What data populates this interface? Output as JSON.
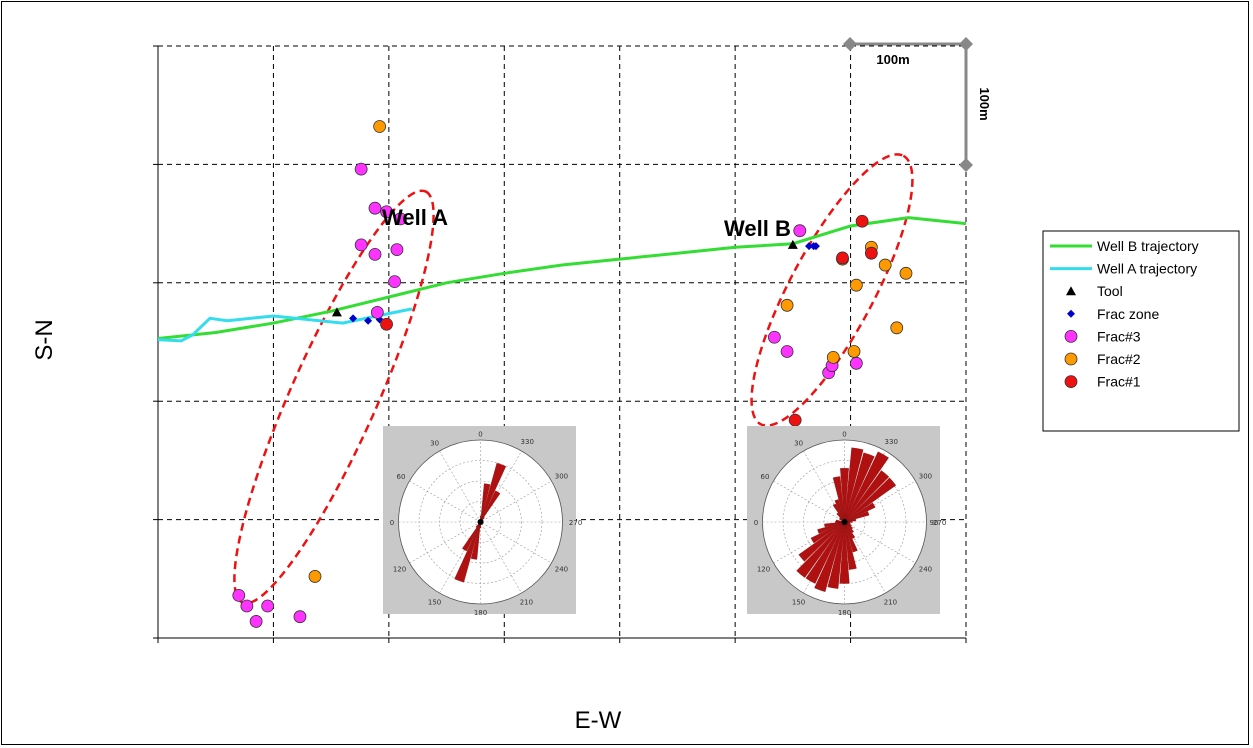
{
  "chart_data": {
    "type": "scatter",
    "xlabel": "E-W",
    "ylabel": "S-N",
    "grid": true,
    "grid_style": "dashed",
    "x_grid_count": 7,
    "y_grid_count": 5,
    "scale_bar": {
      "horizontal": "100m",
      "vertical": "100m"
    },
    "well_labels": [
      "Well A",
      "Well B"
    ],
    "legend_position": "right",
    "series": [
      {
        "name": "Well B trajectory",
        "kind": "line",
        "color": "#33dd33",
        "x": [
          0,
          50,
          100,
          150,
          200,
          250,
          300,
          350,
          400,
          450,
          500,
          550,
          600,
          650,
          700
        ],
        "y": [
          253,
          258,
          266,
          276,
          288,
          300,
          308,
          315,
          320,
          325,
          330,
          333,
          348,
          355,
          350
        ]
      },
      {
        "name": "Well A trajectory",
        "kind": "line",
        "color": "#33ddee",
        "x": [
          0,
          20,
          30,
          45,
          60,
          100,
          160,
          220
        ],
        "y": [
          252,
          251,
          256,
          270,
          268,
          272,
          266,
          278
        ]
      },
      {
        "name": "Tool",
        "kind": "marker",
        "shape": "triangle",
        "color": "#000000",
        "x": [
          155,
          550
        ],
        "y": [
          275,
          332
        ]
      },
      {
        "name": "Frac zone",
        "kind": "marker",
        "shape": "diamond",
        "color": "#0000cc",
        "x": [
          169,
          182,
          192,
          564,
          568,
          570
        ],
        "y": [
          270,
          268,
          269,
          331,
          331,
          331
        ]
      },
      {
        "name": "Frac#3",
        "kind": "marker",
        "shape": "circle",
        "color": "#ff33ff",
        "x": [
          176,
          188,
          198,
          210,
          176,
          188,
          207,
          205,
          190,
          70,
          77,
          85,
          95,
          123,
          556,
          545,
          534,
          581,
          584,
          605
        ],
        "y": [
          396,
          363,
          360,
          354,
          332,
          324,
          328,
          301,
          275,
          36,
          27,
          14,
          27,
          18,
          344,
          242,
          254,
          224,
          230,
          232
        ]
      },
      {
        "name": "Frac#2",
        "kind": "marker",
        "shape": "circle",
        "color": "#ff9900",
        "x": [
          192,
          136,
          545,
          585,
          603,
          605,
          618,
          630,
          640,
          648,
          593
        ],
        "y": [
          432,
          52,
          281,
          237,
          242,
          298,
          330,
          315,
          262,
          308,
          320
        ]
      },
      {
        "name": "Frac#1",
        "kind": "marker",
        "shape": "circle",
        "color": "#ee1111",
        "x": [
          198,
          552,
          610,
          593,
          618
        ],
        "y": [
          265,
          184,
          352,
          321,
          325
        ]
      }
    ],
    "rose_diagrams": [
      {
        "labels": {
          "top": "0",
          "n30": "30",
          "n330": "330",
          "e60": "60",
          "e300": "300",
          "w90": "0",
          "e270": "270",
          "s120": "120",
          "s240": "240",
          "s150": "150",
          "s180": "180",
          "s210": "210"
        },
        "dominant_direction_deg": 20
      },
      {
        "labels": {
          "top": "0",
          "n30": "30",
          "n330": "330",
          "e60": "60",
          "e300": "300",
          "w90": "0",
          "e270": "270",
          "e90": "90",
          "s120": "120",
          "s240": "240",
          "s150": "150",
          "s180": "180",
          "s210": "210"
        },
        "dominant_direction_deg": 25
      }
    ]
  }
}
